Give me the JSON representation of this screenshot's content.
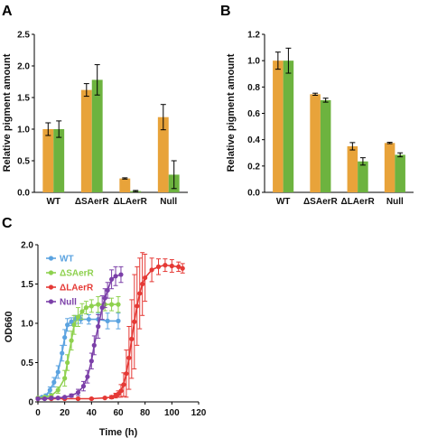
{
  "colors": {
    "orange": "#E8A33A",
    "green": "#6DB33F",
    "wt": "#5BA3E0",
    "dsaerr": "#8ED14E",
    "dlaerr": "#E53935",
    "null": "#7B3FA8"
  },
  "chart_data": [
    {
      "panel_label": "A",
      "type": "bar",
      "ylabel": "Relative pigment amount",
      "xlabel": "",
      "ylim": [
        0,
        2.5
      ],
      "yticks": [
        "0.0",
        "0.5",
        "1.0",
        "1.5",
        "2.0",
        "2.5"
      ],
      "categories": [
        "WT",
        "ΔSAerR",
        "ΔLAerR",
        "Null"
      ],
      "series": [
        {
          "color": "#E8A33A",
          "values": [
            1.0,
            1.62,
            0.22,
            1.19
          ],
          "errors": [
            0.1,
            0.1,
            0.01,
            0.2
          ]
        },
        {
          "color": "#6DB33F",
          "values": [
            1.0,
            1.78,
            0.02,
            0.28
          ],
          "errors": [
            0.13,
            0.24,
            0.01,
            0.22
          ]
        }
      ]
    },
    {
      "panel_label": "B",
      "type": "bar",
      "ylabel": "Relative pigment amount",
      "xlabel": "",
      "ylim": [
        0,
        1.2
      ],
      "yticks": [
        "0.0",
        "0.2",
        "0.4",
        "0.6",
        "0.8",
        "1.0",
        "1.2"
      ],
      "categories": [
        "WT",
        "ΔSAerR",
        "ΔLAerR",
        "Null"
      ],
      "series": [
        {
          "color": "#E8A33A",
          "values": [
            1.0,
            0.745,
            0.35,
            0.375
          ],
          "errors": [
            0.065,
            0.008,
            0.028,
            0.005
          ]
        },
        {
          "color": "#6DB33F",
          "values": [
            1.0,
            0.7,
            0.235,
            0.285
          ],
          "errors": [
            0.095,
            0.015,
            0.028,
            0.015
          ]
        }
      ]
    },
    {
      "panel_label": "C",
      "type": "scatter",
      "xlabel": "Time (h)",
      "ylabel": "OD660",
      "xlim": [
        0,
        120
      ],
      "ylim": [
        0,
        2.0
      ],
      "xticks": [
        "0",
        "20",
        "40",
        "60",
        "80",
        "100",
        "120"
      ],
      "yticks": [
        "0",
        "0.5",
        "1.0",
        "1.5",
        "2.0"
      ],
      "legend_position": "top-left",
      "series": [
        {
          "name": "WT",
          "color": "#5BA3E0",
          "x": [
            0,
            3,
            6,
            9,
            12,
            15,
            18,
            20,
            22,
            25,
            28,
            32,
            38,
            45,
            52,
            60
          ],
          "y": [
            0.05,
            0.06,
            0.08,
            0.15,
            0.25,
            0.38,
            0.62,
            0.82,
            0.98,
            1.02,
            1.05,
            1.05,
            1.05,
            1.05,
            1.03,
            1.03
          ],
          "err": [
            0.01,
            0.01,
            0.02,
            0.04,
            0.06,
            0.08,
            0.1,
            0.1,
            0.08,
            0.05,
            0.05,
            0.05,
            0.06,
            0.08,
            0.1,
            0.1
          ]
        },
        {
          "name": "ΔSAerR",
          "color": "#8ED14E",
          "x": [
            0,
            5,
            10,
            15,
            20,
            22,
            25,
            27,
            30,
            33,
            36,
            40,
            45,
            50,
            55,
            60
          ],
          "y": [
            0.05,
            0.06,
            0.08,
            0.15,
            0.3,
            0.5,
            0.78,
            0.98,
            1.08,
            1.15,
            1.2,
            1.22,
            1.24,
            1.24,
            1.24,
            1.24
          ],
          "err": [
            0.01,
            0.01,
            0.02,
            0.04,
            0.1,
            0.1,
            0.12,
            0.12,
            0.12,
            0.1,
            0.08,
            0.08,
            0.1,
            0.08,
            0.08,
            0.1
          ]
        },
        {
          "name": "ΔLAerR",
          "color": "#E53935",
          "x": [
            0,
            10,
            20,
            30,
            40,
            50,
            55,
            58,
            60,
            62,
            64,
            66,
            68,
            70,
            72,
            74,
            76,
            78,
            80,
            85,
            90,
            95,
            100,
            105,
            108
          ],
          "y": [
            0.04,
            0.04,
            0.04,
            0.04,
            0.04,
            0.05,
            0.06,
            0.08,
            0.1,
            0.14,
            0.22,
            0.36,
            0.56,
            0.8,
            1.02,
            1.22,
            1.38,
            1.5,
            1.58,
            1.68,
            1.72,
            1.74,
            1.73,
            1.72,
            1.7
          ],
          "err": [
            0.01,
            0.01,
            0.01,
            0.01,
            0.01,
            0.01,
            0.02,
            0.03,
            0.04,
            0.08,
            0.15,
            0.3,
            0.4,
            0.5,
            0.6,
            0.5,
            0.45,
            0.4,
            0.3,
            0.15,
            0.1,
            0.08,
            0.08,
            0.06,
            0.06
          ]
        },
        {
          "name": "Null",
          "color": "#7B3FA8",
          "x": [
            0,
            5,
            10,
            15,
            20,
            25,
            30,
            34,
            37,
            40,
            42,
            45,
            48,
            50,
            52,
            55,
            58,
            62
          ],
          "y": [
            0.04,
            0.04,
            0.05,
            0.05,
            0.06,
            0.08,
            0.12,
            0.2,
            0.32,
            0.52,
            0.72,
            0.96,
            1.2,
            1.32,
            1.42,
            1.56,
            1.6,
            1.62
          ],
          "err": [
            0.01,
            0.01,
            0.01,
            0.01,
            0.01,
            0.02,
            0.04,
            0.06,
            0.08,
            0.1,
            0.12,
            0.15,
            0.15,
            0.12,
            0.1,
            0.12,
            0.12,
            0.1
          ]
        }
      ]
    }
  ]
}
